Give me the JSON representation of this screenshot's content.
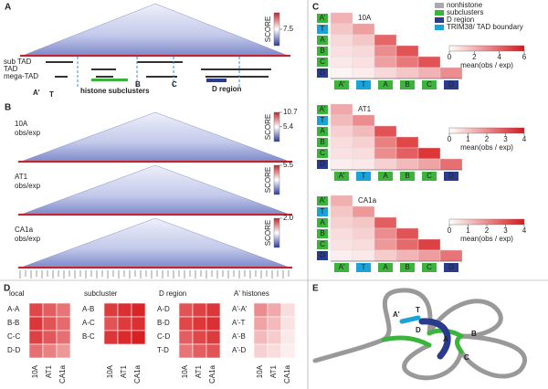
{
  "panel_A": {
    "label": "A",
    "tracks": [
      "sub TAD",
      "TAD",
      "mega-TAD"
    ],
    "colorbar_title": "SCORE",
    "colorbar_ticks": [
      7.5
    ],
    "clim": [
      0,
      15
    ],
    "annotations": [
      {
        "text": "A'",
        "color": "#3cb43c"
      },
      {
        "text": "T",
        "color": "#1aa3d9"
      },
      {
        "text": "histone subclusters",
        "color": "#3cb43c"
      },
      {
        "text": "B",
        "color": "#3cb43c"
      },
      {
        "text": "C",
        "color": "#3cb43c"
      },
      {
        "text": "D region",
        "color": "#2a3a8c"
      }
    ]
  },
  "panel_B": {
    "label": "B",
    "colorbar_title": "SCORE",
    "maps": [
      {
        "name": "10A",
        "sub": "obs/exp",
        "clim": [
          0,
          10.7
        ],
        "ticks": [
          10.7,
          5.4
        ]
      },
      {
        "name": "AT1",
        "sub": "obs/exp",
        "clim": [
          0,
          5.5
        ],
        "ticks": [
          5.5
        ]
      },
      {
        "name": "CA1a",
        "sub": "obs/exp",
        "clim": [
          0,
          2
        ],
        "ticks": [
          {
            "value": 2,
            "label": "2.0"
          }
        ]
      }
    ]
  },
  "panel_C": {
    "label": "C",
    "legend": [
      {
        "name": "nonhistone",
        "color": "#aaaaaa"
      },
      {
        "name": "subclusters",
        "color": "#3cb43c"
      },
      {
        "name": "D region",
        "color": "#2a3a8c"
      },
      {
        "name": "TRIM38/ TAD boundary",
        "color": "#1aa3d9"
      }
    ],
    "rows": [
      "A'",
      "T",
      "A",
      "B",
      "C",
      "D"
    ],
    "row_colors": [
      "#3cb43c",
      "#1aa3d9",
      "#3cb43c",
      "#3cb43c",
      "#3cb43c",
      "#2a3a8c"
    ],
    "colorbar_label": "mean(obs / exp)",
    "matrices": [
      {
        "name": "10A",
        "clim": [
          0,
          6
        ],
        "ticks": [
          0,
          2,
          4,
          6
        ],
        "values": [
          [
            2
          ],
          [
            1.5,
            2.5
          ],
          [
            1,
            1.5,
            4
          ],
          [
            0.8,
            1,
            3,
            4.5
          ],
          [
            0.6,
            0.8,
            2.5,
            3.5,
            4.5
          ],
          [
            0.3,
            0.5,
            1,
            1.5,
            2,
            3
          ]
        ]
      },
      {
        "name": "AT1",
        "clim": [
          0,
          4
        ],
        "ticks": [
          0,
          1,
          2,
          3,
          4
        ],
        "values": [
          [
            1.5
          ],
          [
            1.2,
            2
          ],
          [
            0.8,
            1.2,
            3
          ],
          [
            0.6,
            0.8,
            2.2,
            3.2
          ],
          [
            0.5,
            0.6,
            2,
            2.8,
            3.5
          ],
          [
            0.3,
            0.4,
            0.8,
            1.2,
            1.6,
            2.5
          ]
        ]
      },
      {
        "name": "CA1a",
        "clim": [
          0,
          4
        ],
        "ticks": [
          0,
          1,
          2,
          3,
          4
        ],
        "values": [
          [
            1.4
          ],
          [
            1,
            1.8
          ],
          [
            0.8,
            1,
            2.8
          ],
          [
            0.6,
            0.8,
            2,
            3
          ],
          [
            0.5,
            0.6,
            1.8,
            2.6,
            3.3
          ],
          [
            0.3,
            0.4,
            0.9,
            1.3,
            1.7,
            2.4
          ]
        ]
      }
    ]
  },
  "panel_D": {
    "label": "D",
    "columns": [
      "10A",
      "AT1",
      "CA1a"
    ],
    "clim": [
      0,
      4
    ],
    "groups": [
      {
        "title": "local",
        "rows": [
          "A-A",
          "B-B",
          "C-C",
          "D-D"
        ],
        "values": [
          [
            3.2,
            2.8,
            2.4
          ],
          [
            3.5,
            3,
            2.6
          ],
          [
            3.3,
            2.9,
            2.5
          ],
          [
            2.5,
            2.2,
            1.8
          ]
        ]
      },
      {
        "title": "subcluster",
        "rows": [
          "A-B",
          "A-C",
          "B-C"
        ],
        "values": [
          [
            3.4,
            3.6,
            3.8
          ],
          [
            3,
            3.4,
            3.6
          ],
          [
            3.5,
            3.7,
            3.9
          ]
        ]
      },
      {
        "title": "D region",
        "rows": [
          "A-D",
          "B-D",
          "C-D",
          "T-D"
        ],
        "values": [
          [
            3,
            3.3,
            3.5
          ],
          [
            3.2,
            3.5,
            3.6
          ],
          [
            2.8,
            3.2,
            3.4
          ],
          [
            2.4,
            2.8,
            3
          ]
        ]
      },
      {
        "title": "A' histones",
        "rows": [
          "A'-A'",
          "A'-T",
          "A'-B",
          "A'-D"
        ],
        "values": [
          [
            2,
            1.5,
            0.6
          ],
          [
            1.6,
            1.2,
            0.5
          ],
          [
            1.2,
            0.9,
            0.4
          ],
          [
            0.8,
            0.6,
            0.3
          ]
        ]
      }
    ]
  },
  "panel_E": {
    "label": "E",
    "labels": [
      {
        "text": "A'",
        "color": "#3cb43c"
      },
      {
        "text": "T",
        "color": "#1aa3d9"
      },
      {
        "text": "D",
        "color": "#2a3a8c"
      },
      {
        "text": "A",
        "color": "#3cb43c"
      },
      {
        "text": "B",
        "color": "#3cb43c"
      },
      {
        "text": "C",
        "color": "#3cb43c"
      }
    ]
  }
}
